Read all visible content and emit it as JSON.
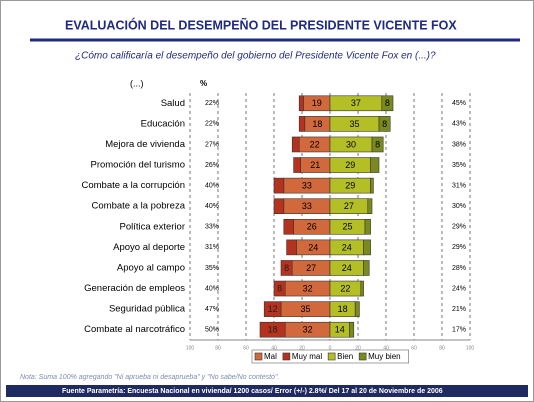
{
  "chart_data": {
    "type": "diverging_bar",
    "title": "EVALUACIÓN DEL DESEMPEÑO DEL PRESIDENTE VICENTE FOX",
    "subtitle": "¿Cómo calificaría el desempeño del gobierno del Presidente Vicente Fox en (...)?",
    "category_header": "(...)",
    "percent_header": "%",
    "categories": [
      "Salud",
      "Educación",
      "Mejora de vivienda",
      "Promoción del turismo",
      "Combate a la  corrupción",
      "Combate a la pobreza",
      "Política exterior",
      "Apoyo al deporte",
      "Apoyo al campo",
      "Generación de empleos",
      "Seguridad pública",
      "Combate al narcotráfico"
    ],
    "series": [
      {
        "name": "Mal",
        "color": "#d2693c",
        "values": [
          19,
          18,
          22,
          21,
          33,
          33,
          26,
          24,
          27,
          32,
          35,
          32
        ]
      },
      {
        "name": "Muy mal",
        "color": "#b4321e",
        "values": [
          3,
          4,
          5,
          5,
          7,
          7,
          7,
          7,
          8,
          8,
          12,
          18
        ]
      },
      {
        "name": "Bien",
        "color": "#b4bf26",
        "values": [
          37,
          35,
          30,
          29,
          29,
          27,
          25,
          24,
          24,
          22,
          18,
          14
        ]
      },
      {
        "name": "Muy bien",
        "color": "#7b8a1e",
        "values": [
          8,
          8,
          8,
          6,
          2,
          3,
          4,
          5,
          4,
          2,
          3,
          3
        ]
      }
    ],
    "left_totals": {
      "values": [
        22,
        22,
        27,
        26,
        40,
        40,
        33,
        31,
        35,
        40,
        47,
        50
      ],
      "value_labels": [
        "22%",
        "22%",
        "27%",
        "26%",
        "40%",
        "40%",
        "33%",
        "31%",
        "35%",
        "40%",
        "47%",
        "50%"
      ]
    },
    "right_totals": {
      "values": [
        45,
        43,
        38,
        35,
        31,
        30,
        29,
        29,
        28,
        24,
        21,
        17
      ],
      "value_labels": [
        "45%",
        "43%",
        "38%",
        "35%",
        "31%",
        "30%",
        "29%",
        "29%",
        "28%",
        "24%",
        "21%",
        "17%"
      ]
    },
    "xlim": [
      -100,
      100
    ],
    "xticks": [
      {
        "value": -100,
        "label": "100"
      },
      {
        "value": -80,
        "label": "80"
      },
      {
        "value": -60,
        "label": "60"
      },
      {
        "value": -40,
        "label": "40"
      },
      {
        "value": -20,
        "label": "20"
      },
      0,
      20,
      40,
      60,
      80,
      100
    ],
    "grid": true,
    "note": "Nota: Suma 100% agregando \"Ni aprueba ni desaprueba\" y \"No sabe/No contestó\".",
    "source": "Fuente Parametría: Encuesta Nacional en vivienda/ 1200 casos/ Error (+/-) 2.8%/  Del 17 al 20 de Noviembre de 2006"
  }
}
